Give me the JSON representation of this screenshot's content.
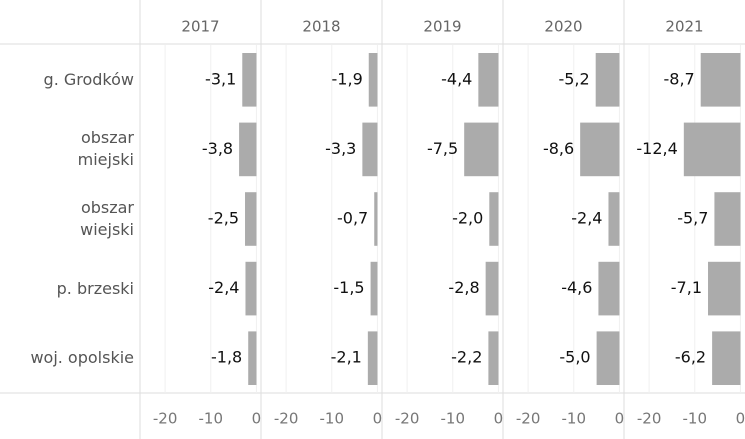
{
  "chart_data": {
    "type": "bar",
    "categories": [
      "g. Grodków",
      "obszar\nmiejski",
      "obszar\nwiejski",
      "p. brzeski",
      "woj. opolskie"
    ],
    "series": [
      {
        "name": "2017",
        "color": "#ababab",
        "values": [
          -3.1,
          -3.8,
          -2.5,
          -2.4,
          -1.8
        ],
        "value_labels": [
          "-3,1",
          "-3,8",
          "-2,5",
          "-2,4",
          "-1,8"
        ]
      },
      {
        "name": "2018",
        "color": "#ababab",
        "values": [
          -1.9,
          -3.3,
          -0.7,
          -1.5,
          -2.1
        ],
        "value_labels": [
          "-1,9",
          "-3,3",
          "-0,7",
          "-1,5",
          "-2,1"
        ]
      },
      {
        "name": "2019",
        "color": "#ababab",
        "values": [
          -4.4,
          -7.5,
          -2.0,
          -2.8,
          -2.2
        ],
        "value_labels": [
          "-4,4",
          "-7,5",
          "-2,0",
          "-2,8",
          "-2,2"
        ]
      },
      {
        "name": "2020",
        "color": "#ababab",
        "values": [
          -5.2,
          -8.6,
          -2.4,
          -4.6,
          -5.0
        ],
        "value_labels": [
          "-5,2",
          "-8,6",
          "-2,4",
          "-4,6",
          "-5,0"
        ]
      },
      {
        "name": "2021",
        "color": "#ababab",
        "values": [
          -8.7,
          -12.4,
          -5.7,
          -7.1,
          -6.2
        ],
        "value_labels": [
          "-8,7",
          "-12,4",
          "-5,7",
          "-7,1",
          "-6,2"
        ]
      }
    ],
    "xlim": [
      -25.5,
      1
    ],
    "xticks": [
      -20,
      -10,
      0
    ],
    "grid": true
  }
}
